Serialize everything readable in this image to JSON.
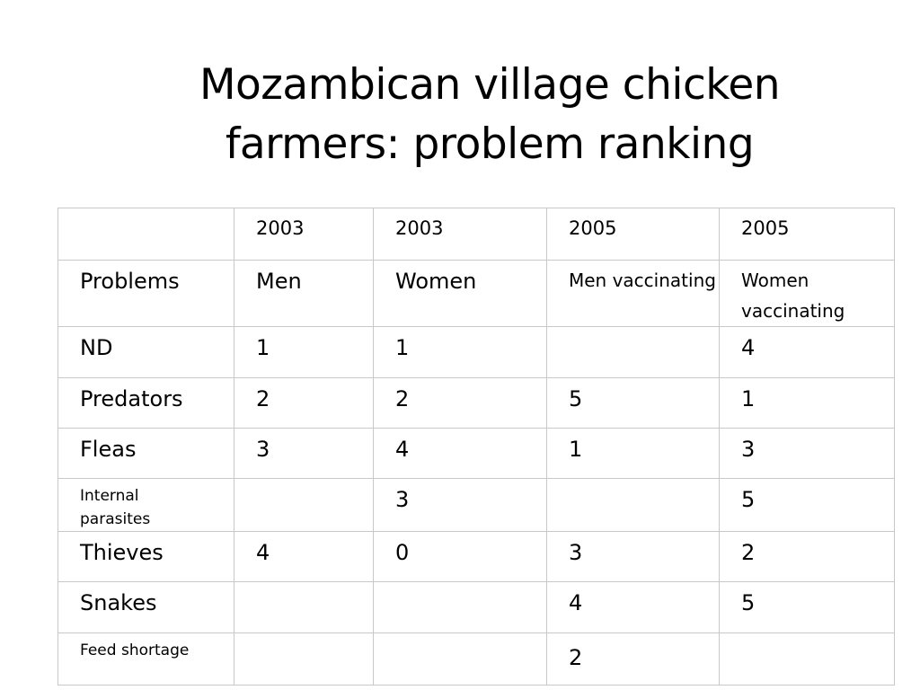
{
  "slide": {
    "title_line1": "Mozambican village chicken",
    "title_line2": "farmers: problem ranking"
  },
  "table": {
    "year_row": [
      "",
      "2003",
      "2003",
      "2005",
      "2005"
    ],
    "header_row": [
      "Problems",
      "Men",
      "Women",
      "Men vaccinating",
      "Women vaccinating"
    ],
    "rows": [
      {
        "problem": "ND",
        "men_2003": "1",
        "women_2003": "1",
        "men_vacc_2005": "",
        "women_vacc_2005": "4"
      },
      {
        "problem": "Predators",
        "men_2003": "2",
        "women_2003": "2",
        "men_vacc_2005": "5",
        "women_vacc_2005": "1"
      },
      {
        "problem": "Fleas",
        "men_2003": "3",
        "women_2003": "4",
        "men_vacc_2005": "1",
        "women_vacc_2005": "3"
      },
      {
        "problem": "Internal parasites",
        "men_2003": "",
        "women_2003": "3",
        "men_vacc_2005": "",
        "women_vacc_2005": "5"
      },
      {
        "problem": "Thieves",
        "men_2003": "4",
        "women_2003": "0",
        "men_vacc_2005": "3",
        "women_vacc_2005": "2"
      },
      {
        "problem": "Snakes",
        "men_2003": "",
        "women_2003": "",
        "men_vacc_2005": "4",
        "women_vacc_2005": "5"
      },
      {
        "problem": "Feed shortage",
        "men_2003": "",
        "women_2003": "",
        "men_vacc_2005": "2",
        "women_vacc_2005": ""
      }
    ]
  }
}
